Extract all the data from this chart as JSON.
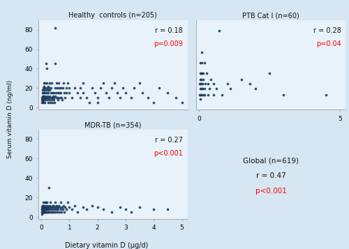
{
  "healthy_controls": {
    "title": "Healthy  controls (n=205)",
    "r": "0.18",
    "p": "p=0.009",
    "xlim": [
      -0.1,
      5.2
    ],
    "ylim": [
      -2,
      90
    ],
    "yticks": [
      0,
      20,
      40,
      60,
      80
    ],
    "xticks": [],
    "x": [
      0.02,
      0.03,
      0.03,
      0.04,
      0.04,
      0.05,
      0.05,
      0.05,
      0.06,
      0.06,
      0.07,
      0.07,
      0.08,
      0.08,
      0.09,
      0.09,
      0.1,
      0.1,
      0.1,
      0.1,
      0.1,
      0.12,
      0.12,
      0.13,
      0.13,
      0.15,
      0.15,
      0.15,
      0.17,
      0.18,
      0.18,
      0.2,
      0.2,
      0.2,
      0.2,
      0.22,
      0.22,
      0.23,
      0.25,
      0.25,
      0.25,
      0.25,
      0.28,
      0.28,
      0.3,
      0.3,
      0.3,
      0.3,
      0.32,
      0.35,
      0.35,
      0.35,
      0.37,
      0.38,
      0.4,
      0.4,
      0.4,
      0.4,
      0.42,
      0.45,
      0.45,
      0.45,
      0.48,
      0.5,
      0.5,
      0.5,
      0.5,
      0.52,
      0.55,
      0.55,
      0.58,
      0.6,
      0.6,
      0.6,
      0.62,
      0.65,
      0.65,
      0.68,
      0.7,
      0.7,
      0.72,
      0.75,
      0.78,
      0.8,
      0.82,
      0.85,
      0.9,
      0.9,
      0.95,
      1.0,
      1.0,
      1.1,
      1.2,
      1.3,
      1.4,
      1.4,
      1.5,
      1.5,
      1.6,
      1.7,
      1.8,
      1.9,
      2.0,
      2.0,
      2.1,
      2.2,
      2.3,
      2.4,
      2.5,
      2.6,
      2.7,
      2.8,
      2.9,
      3.0,
      3.2,
      3.3,
      3.5,
      3.6,
      3.8,
      4.0,
      4.2,
      4.5,
      4.8,
      5.0
    ],
    "y": [
      5,
      8,
      10,
      6,
      12,
      15,
      7,
      18,
      10,
      8,
      12,
      5,
      20,
      15,
      25,
      10,
      8,
      12,
      18,
      15,
      22,
      10,
      5,
      25,
      20,
      15,
      8,
      12,
      18,
      10,
      45,
      40,
      15,
      20,
      25,
      10,
      8,
      12,
      18,
      5,
      22,
      15,
      10,
      20,
      25,
      8,
      12,
      18,
      5,
      10,
      15,
      20,
      8,
      25,
      10,
      5,
      15,
      10,
      12,
      8,
      15,
      10,
      5,
      12,
      82,
      45,
      20,
      15,
      10,
      25,
      20,
      15,
      10,
      8,
      25,
      20,
      15,
      10,
      20,
      15,
      10,
      8,
      20,
      25,
      15,
      10,
      20,
      15,
      25,
      20,
      15,
      10,
      20,
      15,
      10,
      20,
      25,
      15,
      10,
      5,
      20,
      15,
      10,
      5,
      20,
      25,
      15,
      10,
      20,
      25,
      15,
      10,
      20,
      15,
      10,
      20,
      25,
      15,
      10,
      5,
      20,
      15,
      10,
      5
    ]
  },
  "ptb_cat1": {
    "title": "PTB Cat I (n=60)",
    "r": "0.28",
    "p": "p=0.04",
    "xlim": [
      -0.1,
      5.2
    ],
    "ylim": [
      -2,
      40
    ],
    "yticks": [],
    "xticks": [
      0,
      5
    ],
    "x": [
      0.02,
      0.02,
      0.03,
      0.03,
      0.04,
      0.04,
      0.05,
      0.05,
      0.05,
      0.06,
      0.07,
      0.07,
      0.08,
      0.08,
      0.09,
      0.1,
      0.1,
      0.1,
      0.12,
      0.12,
      0.13,
      0.15,
      0.15,
      0.18,
      0.2,
      0.2,
      0.22,
      0.25,
      0.3,
      0.3,
      0.35,
      0.4,
      0.5,
      0.5,
      0.6,
      0.7,
      0.8,
      1.0,
      1.1,
      1.5,
      1.8,
      2.0,
      2.5,
      3.0,
      4.5
    ],
    "y": [
      5,
      10,
      3,
      12,
      8,
      15,
      10,
      5,
      20,
      15,
      8,
      12,
      5,
      25,
      10,
      20,
      8,
      15,
      10,
      8,
      5,
      15,
      12,
      5,
      20,
      8,
      10,
      15,
      5,
      10,
      8,
      12,
      5,
      10,
      8,
      35,
      5,
      10,
      8,
      12,
      10,
      8,
      15,
      5,
      5
    ]
  },
  "mdr_tb": {
    "title": "MDR-TB (n=354)",
    "r": "0.27",
    "p": "p<0.001",
    "xlim": [
      -0.1,
      5.2
    ],
    "ylim": [
      -2,
      90
    ],
    "yticks": [
      0,
      20,
      40,
      60,
      80
    ],
    "xticks": [
      0,
      1,
      2,
      3,
      4,
      5
    ],
    "x": [
      0.02,
      0.02,
      0.02,
      0.03,
      0.03,
      0.03,
      0.04,
      0.04,
      0.04,
      0.05,
      0.05,
      0.05,
      0.05,
      0.06,
      0.06,
      0.06,
      0.07,
      0.07,
      0.07,
      0.08,
      0.08,
      0.08,
      0.09,
      0.09,
      0.1,
      0.1,
      0.1,
      0.1,
      0.1,
      0.12,
      0.12,
      0.12,
      0.13,
      0.13,
      0.15,
      0.15,
      0.15,
      0.15,
      0.17,
      0.18,
      0.18,
      0.2,
      0.2,
      0.2,
      0.2,
      0.22,
      0.22,
      0.22,
      0.25,
      0.25,
      0.25,
      0.28,
      0.28,
      0.3,
      0.3,
      0.3,
      0.3,
      0.32,
      0.35,
      0.35,
      0.38,
      0.4,
      0.4,
      0.4,
      0.42,
      0.45,
      0.45,
      0.48,
      0.5,
      0.5,
      0.5,
      0.52,
      0.55,
      0.55,
      0.58,
      0.6,
      0.6,
      0.62,
      0.65,
      0.68,
      0.7,
      0.7,
      0.72,
      0.75,
      0.78,
      0.8,
      0.82,
      0.85,
      0.9,
      0.95,
      1.0,
      1.1,
      1.2,
      1.3,
      1.5,
      1.6,
      1.8,
      2.0,
      2.2,
      2.5,
      2.8,
      3.0,
      3.2,
      3.5,
      4.0,
      4.5
    ],
    "y": [
      3,
      8,
      5,
      5,
      10,
      8,
      8,
      12,
      5,
      10,
      5,
      8,
      12,
      7,
      8,
      5,
      8,
      15,
      5,
      5,
      10,
      8,
      8,
      5,
      12,
      5,
      10,
      8,
      6,
      15,
      10,
      5,
      5,
      8,
      8,
      12,
      5,
      10,
      8,
      15,
      5,
      10,
      5,
      8,
      15,
      10,
      5,
      12,
      8,
      10,
      5,
      30,
      8,
      12,
      5,
      10,
      8,
      15,
      5,
      10,
      8,
      12,
      5,
      10,
      8,
      12,
      5,
      10,
      8,
      15,
      5,
      10,
      8,
      12,
      5,
      10,
      8,
      12,
      5,
      10,
      8,
      15,
      5,
      10,
      8,
      12,
      5,
      10,
      8,
      15,
      10,
      8,
      12,
      5,
      10,
      8,
      12,
      10,
      8,
      5,
      10,
      8,
      5,
      10,
      8,
      8
    ]
  },
  "global_panel": {
    "title": "Global (n=619)",
    "r": "r = 0.47",
    "p": "p<0.001"
  },
  "dot_color": "#1c3d5e",
  "dot_size": 7,
  "bg_color": "#d6e6f2",
  "plot_bg": "#e8f2fa",
  "ylabel": "Serum vitamin D (ng/ml)",
  "xlabel": "Dietary vitamin D (μg/d)",
  "title_fontsize": 7,
  "annot_fontsize": 7,
  "tick_fontsize": 6.5
}
